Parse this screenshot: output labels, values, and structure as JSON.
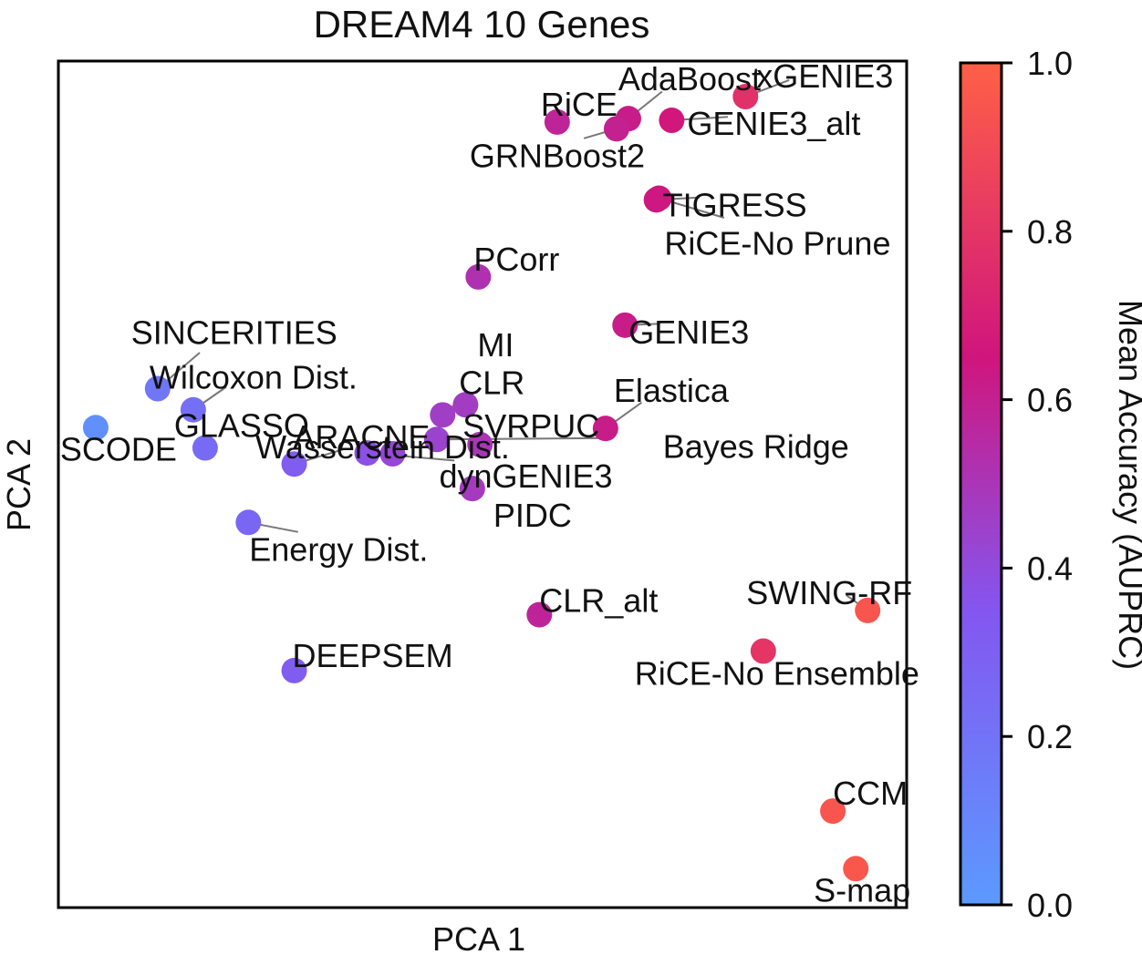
{
  "chart_data": {
    "type": "scatter",
    "title": "DREAM4 10 Genes",
    "xlabel": "PCA 1",
    "ylabel": "PCA 2",
    "xlim": [
      0,
      100
    ],
    "ylim": [
      0,
      100
    ],
    "grid": false,
    "colorbar": {
      "label": "Mean Accuracy (AUPRC)",
      "range": [
        0,
        1
      ],
      "ticks": [
        "0.0",
        "0.2",
        "0.4",
        "0.6",
        "0.8",
        "1.0"
      ],
      "colors": [
        "#5b9aff",
        "#8456f0",
        "#d0157d",
        "#ff6046"
      ]
    },
    "points": [
      {
        "name": "xGENIE3",
        "x": 81.0,
        "y": 95.8,
        "acc": 0.78
      },
      {
        "name": "AdaBoost",
        "x": 67.2,
        "y": 93.2,
        "acc": 0.62
      },
      {
        "name": "RiCE",
        "x": 58.8,
        "y": 92.8,
        "acc": 0.58
      },
      {
        "name": "GENIE3_alt",
        "x": 72.3,
        "y": 93.0,
        "acc": 0.66
      },
      {
        "name": "GRNBoost2",
        "x": 65.8,
        "y": 92.0,
        "acc": 0.6
      },
      {
        "name": "RiCE-No Prune",
        "x": 70.8,
        "y": 83.8,
        "acc": 0.65
      },
      {
        "name": "TIGRESS",
        "x": 70.5,
        "y": 83.6,
        "acc": 0.64
      },
      {
        "name": "PCorr",
        "x": 49.5,
        "y": 74.5,
        "acc": 0.52
      },
      {
        "name": "GENIE3",
        "x": 66.8,
        "y": 68.8,
        "acc": 0.62
      },
      {
        "name": "MI",
        "x": 48.0,
        "y": 59.4,
        "acc": 0.47
      },
      {
        "name": "CLR",
        "x": 45.3,
        "y": 58.2,
        "acc": 0.46
      },
      {
        "name": "SVRPUC",
        "x": 49.7,
        "y": 54.7,
        "acc": 0.5
      },
      {
        "name": "Elastica",
        "x": 64.5,
        "y": 56.6,
        "acc": 0.62
      },
      {
        "name": "Bayes Ridge",
        "x": 44.6,
        "y": 55.3,
        "acc": 0.44
      },
      {
        "name": "ARACNE",
        "x": 39.4,
        "y": 53.6,
        "acc": 0.42
      },
      {
        "name": "dynGENIE3",
        "x": 36.4,
        "y": 53.7,
        "acc": 0.38
      },
      {
        "name": "PIDC",
        "x": 48.8,
        "y": 49.5,
        "acc": 0.48
      },
      {
        "name": "SINCERITIES",
        "x": 11.7,
        "y": 61.3,
        "acc": 0.18
      },
      {
        "name": "Wilcoxon Dist.",
        "x": 15.9,
        "y": 58.8,
        "acc": 0.22
      },
      {
        "name": "GLASSO",
        "x": 17.3,
        "y": 54.3,
        "acc": 0.24
      },
      {
        "name": "SCODE",
        "x": 4.4,
        "y": 56.7,
        "acc": 0.05
      },
      {
        "name": "Wasserstein Dist.",
        "x": 27.8,
        "y": 52.4,
        "acc": 0.32
      },
      {
        "name": "Energy Dist.",
        "x": 22.4,
        "y": 45.5,
        "acc": 0.26
      },
      {
        "name": "CLR_alt",
        "x": 56.7,
        "y": 34.6,
        "acc": 0.58
      },
      {
        "name": "SWING-RF",
        "x": 95.4,
        "y": 35.1,
        "acc": 0.95
      },
      {
        "name": "RiCE-No Ensemble",
        "x": 83.1,
        "y": 30.3,
        "acc": 0.8
      },
      {
        "name": "DEEPSEM",
        "x": 27.8,
        "y": 28.0,
        "acc": 0.32
      },
      {
        "name": "CCM",
        "x": 91.3,
        "y": 11.4,
        "acc": 0.95
      },
      {
        "name": "S-map",
        "x": 94.0,
        "y": 4.6,
        "acc": 0.96
      }
    ]
  }
}
